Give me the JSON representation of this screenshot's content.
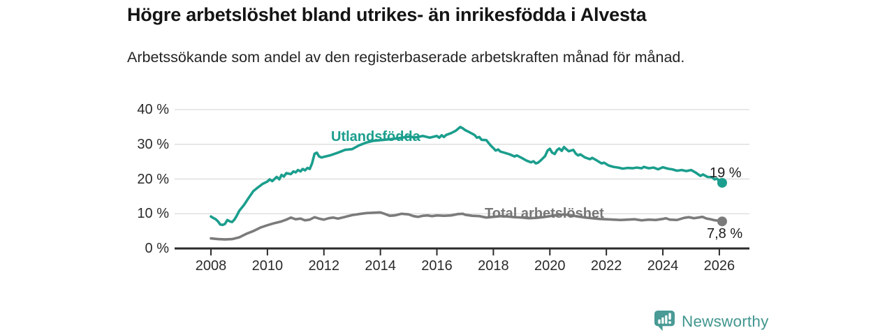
{
  "header": {
    "title": "Högre arbetslöshet bland utrikes- än inrikesfödda i Alvesta",
    "subtitle": "Arbetssökande som andel av den registerbaserade arbetskraften månad för månad."
  },
  "chart_data": {
    "type": "line",
    "title": "Högre arbetslöshet bland utrikes- än inrikesfödda i Alvesta",
    "subtitle": "Arbetssökande som andel av den registerbaserade arbetskraften månad för månad.",
    "unit": "%",
    "ylim": [
      0,
      40
    ],
    "x_range_years": [
      2008,
      2026.1
    ],
    "grid": true,
    "legend_position": "inline-labels",
    "colors": {
      "grid": "#d9d9d9",
      "axis": "#2b2b2b",
      "tick_text": "#2a2a2a",
      "value_label_text": "#1a1a1a"
    },
    "y_ticks": [
      {
        "value": 0,
        "label": "0 %"
      },
      {
        "value": 10,
        "label": "10 %"
      },
      {
        "value": 20,
        "label": "20 %"
      },
      {
        "value": 30,
        "label": "30 %"
      },
      {
        "value": 40,
        "label": "40 %"
      }
    ],
    "x_ticks": [
      {
        "value": 2008,
        "label": "2008"
      },
      {
        "value": 2010,
        "label": "2010"
      },
      {
        "value": 2012,
        "label": "2012"
      },
      {
        "value": 2014,
        "label": "2014"
      },
      {
        "value": 2016,
        "label": "2016"
      },
      {
        "value": 2018,
        "label": "2018"
      },
      {
        "value": 2020,
        "label": "2020"
      },
      {
        "value": 2022,
        "label": "2022"
      },
      {
        "value": 2024,
        "label": "2024"
      },
      {
        "value": 2026,
        "label": "2026"
      }
    ],
    "series": [
      {
        "id": "utlandsfodda",
        "name": "Utlandsfödda",
        "color": "#1b9e8d",
        "end_label": "19 %",
        "end_value": 19,
        "x": [
          2008.0,
          2008.08,
          2008.17,
          2008.25,
          2008.33,
          2008.42,
          2008.5,
          2008.58,
          2008.67,
          2008.75,
          2008.83,
          2008.92,
          2009.0,
          2009.17,
          2009.33,
          2009.5,
          2009.67,
          2009.83,
          2010.0,
          2010.08,
          2010.17,
          2010.33,
          2010.42,
          2010.5,
          2010.58,
          2010.67,
          2010.83,
          2010.92,
          2011.0,
          2011.08,
          2011.17,
          2011.25,
          2011.33,
          2011.42,
          2011.5,
          2011.58,
          2011.67,
          2011.75,
          2011.83,
          2011.92,
          2012.0,
          2012.25,
          2012.5,
          2012.75,
          2013.0,
          2013.25,
          2013.5,
          2013.75,
          2014.0,
          2014.25,
          2014.5,
          2014.75,
          2015.0,
          2015.25,
          2015.5,
          2015.75,
          2016.0,
          2016.08,
          2016.17,
          2016.25,
          2016.33,
          2016.5,
          2016.67,
          2016.83,
          2016.92,
          2017.0,
          2017.17,
          2017.33,
          2017.42,
          2017.5,
          2017.58,
          2017.75,
          2017.83,
          2017.92,
          2018.0,
          2018.08,
          2018.17,
          2018.25,
          2018.42,
          2018.58,
          2018.75,
          2018.83,
          2019.0,
          2019.17,
          2019.33,
          2019.42,
          2019.5,
          2019.58,
          2019.67,
          2019.83,
          2019.92,
          2020.0,
          2020.08,
          2020.17,
          2020.25,
          2020.33,
          2020.42,
          2020.5,
          2020.58,
          2020.67,
          2020.83,
          2020.92,
          2021.0,
          2021.08,
          2021.25,
          2021.42,
          2021.5,
          2021.67,
          2021.83,
          2021.92,
          2022.08,
          2022.25,
          2022.42,
          2022.58,
          2022.75,
          2022.92,
          2023.08,
          2023.25,
          2023.33,
          2023.5,
          2023.67,
          2023.83,
          2024.0,
          2024.17,
          2024.33,
          2024.5,
          2024.67,
          2024.83,
          2025.0,
          2025.17,
          2025.33,
          2025.42,
          2025.58,
          2025.75,
          2025.83,
          2025.92,
          2026.0,
          2026.1
        ],
        "values": [
          9.2,
          8.8,
          8.4,
          7.8,
          6.9,
          6.8,
          7.1,
          8.2,
          7.8,
          7.6,
          8.3,
          9.5,
          10.8,
          12.5,
          14.5,
          16.5,
          17.6,
          18.6,
          19.3,
          19.9,
          19.4,
          20.6,
          19.9,
          21.2,
          20.7,
          21.7,
          21.4,
          22.2,
          21.9,
          22.6,
          22.2,
          22.9,
          22.5,
          23.2,
          22.9,
          24.5,
          27.3,
          27.6,
          26.5,
          26.2,
          26.4,
          26.9,
          27.6,
          28.4,
          28.6,
          29.7,
          30.5,
          31.0,
          31.2,
          31.4,
          31.6,
          31.9,
          32.2,
          32.0,
          32.4,
          31.9,
          32.4,
          31.9,
          32.6,
          32.1,
          32.7,
          33.2,
          33.9,
          35.0,
          34.6,
          34.1,
          33.4,
          32.7,
          31.9,
          32.1,
          31.3,
          31.2,
          30.4,
          29.5,
          28.9,
          28.2,
          28.5,
          27.9,
          27.5,
          27.1,
          26.5,
          26.8,
          26.1,
          25.3,
          24.8,
          25.1,
          24.5,
          24.7,
          25.3,
          26.6,
          28.2,
          28.7,
          27.6,
          27.2,
          28.3,
          28.8,
          28.1,
          29.2,
          28.6,
          28.0,
          28.4,
          27.3,
          26.8,
          27.1,
          26.2,
          25.7,
          26.1,
          25.3,
          24.5,
          24.7,
          23.9,
          23.5,
          23.3,
          23.0,
          23.2,
          23.1,
          23.3,
          23.1,
          23.5,
          23.1,
          23.3,
          22.8,
          23.4,
          23.0,
          22.8,
          22.4,
          22.6,
          22.3,
          22.6,
          21.8,
          20.9,
          21.3,
          20.6,
          20.5,
          19.9,
          20.1,
          19.4,
          18.9
        ]
      },
      {
        "id": "total",
        "name": "Total arbetslöshet",
        "color": "#7b7b7b",
        "end_label": "7,8 %",
        "end_value": 7.8,
        "x": [
          2008.0,
          2008.25,
          2008.5,
          2008.75,
          2009.0,
          2009.25,
          2009.5,
          2009.75,
          2010.0,
          2010.25,
          2010.5,
          2010.67,
          2010.83,
          2011.0,
          2011.17,
          2011.33,
          2011.5,
          2011.67,
          2011.83,
          2012.0,
          2012.17,
          2012.33,
          2012.5,
          2012.75,
          2013.0,
          2013.25,
          2013.5,
          2013.75,
          2014.0,
          2014.17,
          2014.33,
          2014.5,
          2014.75,
          2015.0,
          2015.17,
          2015.33,
          2015.5,
          2015.67,
          2015.83,
          2016.0,
          2016.25,
          2016.5,
          2016.75,
          2016.92,
          2017.0,
          2017.25,
          2017.5,
          2017.75,
          2018.0,
          2018.25,
          2018.5,
          2018.75,
          2019.0,
          2019.25,
          2019.5,
          2019.75,
          2020.0,
          2020.25,
          2020.5,
          2020.75,
          2021.0,
          2021.25,
          2021.5,
          2021.75,
          2022.0,
          2022.25,
          2022.5,
          2022.75,
          2023.0,
          2023.25,
          2023.5,
          2023.75,
          2024.0,
          2024.1,
          2024.25,
          2024.5,
          2024.75,
          2024.92,
          2025.1,
          2025.26,
          2025.4,
          2025.55,
          2025.7,
          2025.85,
          2026.0,
          2026.1
        ],
        "values": [
          2.9,
          2.7,
          2.6,
          2.7,
          3.2,
          4.2,
          5.0,
          6.0,
          6.7,
          7.3,
          7.8,
          8.3,
          8.9,
          8.4,
          8.6,
          8.1,
          8.3,
          9.0,
          8.6,
          8.3,
          8.7,
          8.9,
          8.6,
          9.1,
          9.6,
          9.9,
          10.2,
          10.3,
          10.4,
          9.9,
          9.4,
          9.5,
          10.0,
          9.8,
          9.3,
          9.1,
          9.4,
          9.5,
          9.3,
          9.5,
          9.4,
          9.5,
          9.9,
          10.0,
          9.7,
          9.4,
          9.3,
          8.9,
          9.1,
          9.3,
          9.2,
          9.0,
          8.9,
          8.7,
          8.8,
          9.0,
          9.3,
          9.6,
          9.8,
          9.5,
          9.2,
          8.9,
          8.7,
          8.5,
          8.4,
          8.3,
          8.2,
          8.3,
          8.4,
          8.1,
          8.3,
          8.2,
          8.5,
          8.7,
          8.3,
          8.2,
          8.8,
          9.0,
          8.7,
          8.9,
          9.1,
          8.6,
          8.4,
          8.1,
          8.0,
          7.8
        ]
      }
    ]
  },
  "branding": {
    "logo_text": "Newsworthy",
    "logo_icon": "bar-chart-speech-bubble-icon",
    "brand_color": "#42968f"
  }
}
